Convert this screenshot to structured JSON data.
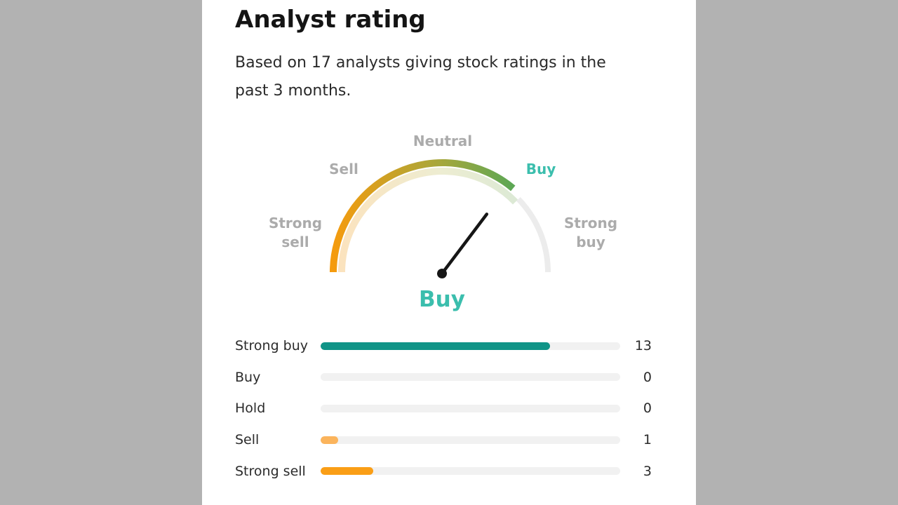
{
  "page": {
    "background_color": "#b2b2b2",
    "card_background_color": "#ffffff"
  },
  "header": {
    "title": "Analyst rating",
    "subtitle_lines": [
      "Based on 17 analysts giving stock ratings in the",
      "past 3 months."
    ]
  },
  "gauge": {
    "scale_labels": {
      "strong_sell": [
        "Strong",
        "sell"
      ],
      "sell": "Sell",
      "neutral": "Neutral",
      "buy": "Buy",
      "strong_buy": [
        "Strong",
        "buy"
      ]
    },
    "current_rating": "Buy",
    "needle_angle_deg": 37,
    "colors": {
      "active_label": "#3bbead",
      "inactive_label": "#ababab",
      "needle": "#161616",
      "remainder_arc": "#ececec",
      "gradient": [
        "#f59b0e",
        "#a6a73c",
        "#5ca755"
      ],
      "gradient_faded": [
        "#fbe3be",
        "#ededd2",
        "#dce9d5"
      ]
    }
  },
  "ratings": {
    "total_analysts": 17,
    "rows": [
      {
        "label": "Strong buy",
        "value": 13,
        "color": "#109487"
      },
      {
        "label": "Buy",
        "value": 0,
        "color": null
      },
      {
        "label": "Hold",
        "value": 0,
        "color": null
      },
      {
        "label": "Sell",
        "value": 1,
        "color": "#fbb45c"
      },
      {
        "label": "Strong sell",
        "value": 3,
        "color": "#fa9e16"
      }
    ]
  },
  "chart_data": [
    {
      "type": "gauge",
      "title": "Analyst rating",
      "scale": [
        "Strong sell",
        "Sell",
        "Neutral",
        "Buy",
        "Strong buy"
      ],
      "value": "Buy",
      "shape": "semicircle",
      "needle_angle_from_vertical_deg": 37
    },
    {
      "type": "bar",
      "orientation": "horizontal",
      "categories": [
        "Strong buy",
        "Buy",
        "Hold",
        "Sell",
        "Strong sell"
      ],
      "values": [
        13,
        0,
        0,
        1,
        3
      ],
      "xlim": [
        0,
        17
      ],
      "total": 17,
      "data_labels": [
        "13",
        "0",
        "0",
        "1",
        "3"
      ]
    }
  ]
}
